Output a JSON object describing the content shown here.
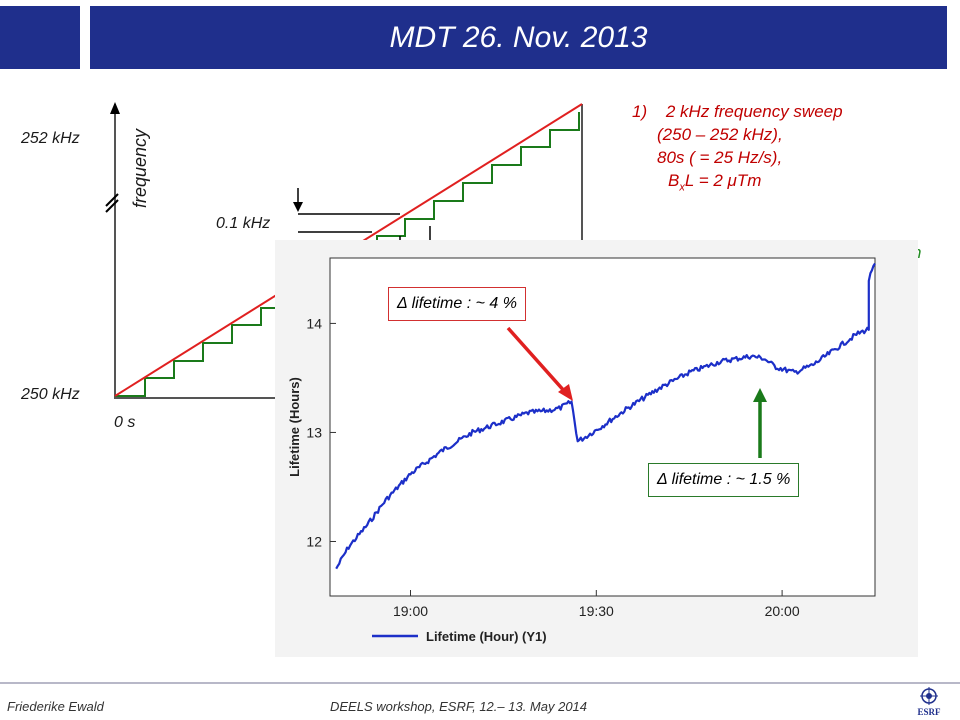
{
  "slide": {
    "title": "MDT 26. Nov. 2013",
    "footer_left": "Friederike Ewald",
    "footer_center": "DEELS workshop, ESRF, 12.– 13. May 2014",
    "logo_text": "ESRF"
  },
  "sweep": {
    "freq_high": "252 kHz",
    "freq_low": "250 kHz",
    "freq_label": "frequency",
    "step_label": "0.1 kHz",
    "time_start": "0 s"
  },
  "notes": {
    "item_number": "1)",
    "line1": "2 kHz frequency sweep",
    "line2": "(250 – 252 kHz),",
    "line3": "80s ( = 25 Hz/s),",
    "line4_prefix": "B",
    "line4_sub": "x",
    "line4_suffix": "L = 2 μTm",
    "cut_text": "n"
  },
  "callouts": {
    "red": "Δ lifetime : ~ 4 %",
    "green": "Δ lifetime : ~ 1.5 %"
  },
  "colors": {
    "header": "#1f2f8c",
    "ramp": "#e02020",
    "steps": "#1a7a1a",
    "trace": "#1c2fc8",
    "notes": "#c00000"
  },
  "chart_data": {
    "type": "line",
    "ylabel": "Lifetime (Hours)",
    "xlabel": "",
    "legend": "Lifetime (Hour) (Y1)",
    "legend_position": "bottom",
    "grid": false,
    "xticks": [
      "19:00",
      "19:30",
      "20:00"
    ],
    "yticks": [
      "12",
      "13",
      "14"
    ],
    "xlim": [
      "18:47",
      "20:15"
    ],
    "ylim": [
      11.5,
      14.6
    ],
    "series": [
      {
        "name": "Lifetime (Hour) (Y1)",
        "x": [
          "18:48",
          "18:50",
          "18:53",
          "18:56",
          "19:00",
          "19:05",
          "19:10",
          "19:15",
          "19:19",
          "19:22",
          "19:24",
          "19:26",
          "19:27",
          "19:28",
          "19:31",
          "19:35",
          "19:40",
          "19:45",
          "19:50",
          "19:55",
          "19:57",
          "19:59",
          "20:02",
          "20:05",
          "20:09",
          "20:12",
          "20:14",
          "20:14",
          "20:15"
        ],
        "y": [
          11.75,
          11.95,
          12.15,
          12.38,
          12.62,
          12.83,
          13.0,
          13.1,
          13.18,
          13.2,
          13.22,
          13.28,
          12.92,
          12.95,
          13.06,
          13.22,
          13.4,
          13.55,
          13.65,
          13.7,
          13.68,
          13.6,
          13.55,
          13.62,
          13.78,
          13.9,
          13.95,
          14.4,
          14.55
        ]
      }
    ]
  }
}
